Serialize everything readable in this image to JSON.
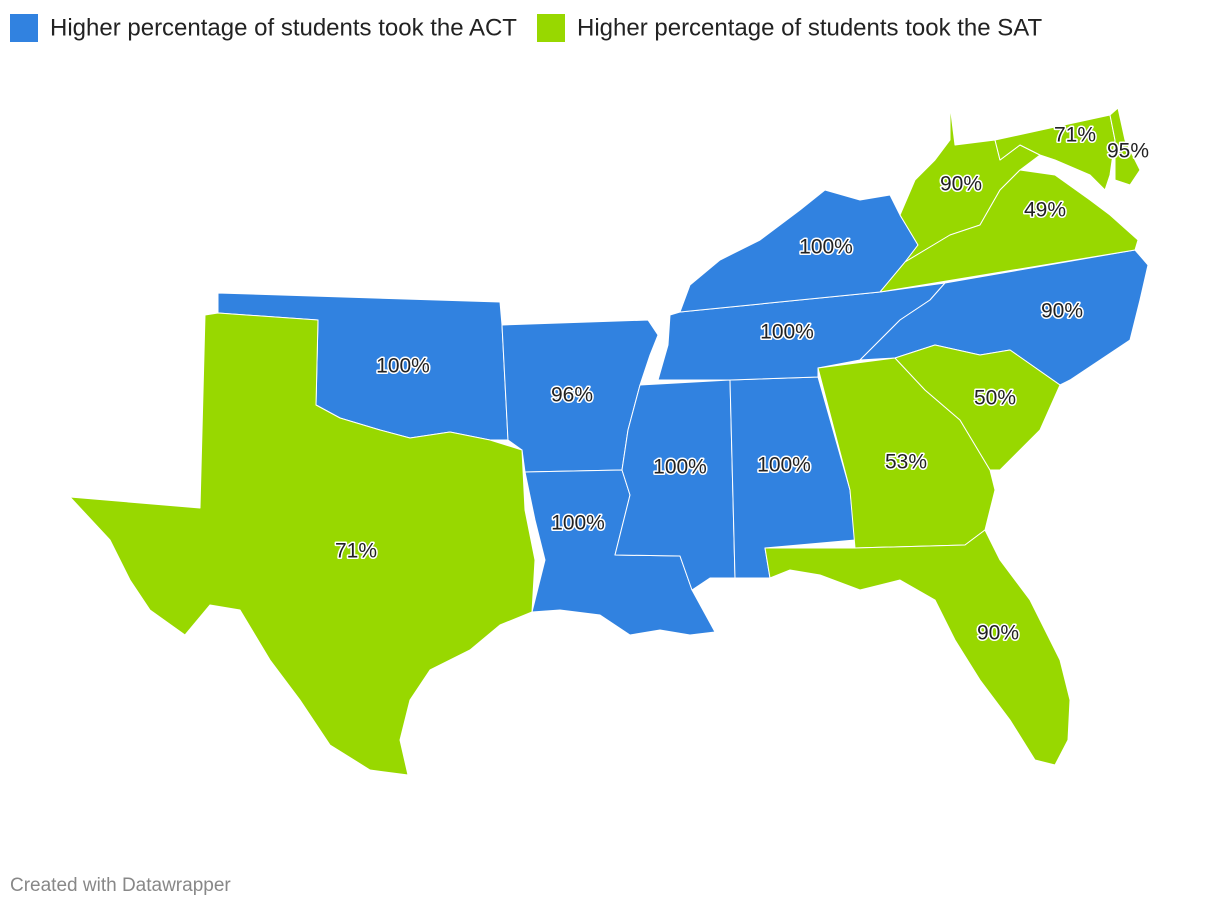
{
  "legend": [
    {
      "label": "Higher percentage of students took the ACT",
      "color": "#3182e0"
    },
    {
      "label": "Higher percentage of students took the SAT",
      "color": "#98d800"
    }
  ],
  "regions": [
    {
      "label": "100%",
      "legend": 0
    },
    {
      "label": "96%",
      "legend": 0
    },
    {
      "label": "100%",
      "legend": 0
    },
    {
      "label": "100%",
      "legend": 0
    },
    {
      "label": "100%",
      "legend": 0
    },
    {
      "label": "100%",
      "legend": 0
    },
    {
      "label": "100%",
      "legend": 0
    },
    {
      "label": "90%",
      "legend": 0
    },
    {
      "label": "71%",
      "legend": 1
    },
    {
      "label": "53%",
      "legend": 1
    },
    {
      "label": "50%",
      "legend": 1
    },
    {
      "label": "90%",
      "legend": 1
    },
    {
      "label": "90%",
      "legend": 1
    },
    {
      "label": "49%",
      "legend": 1
    },
    {
      "label": "71%",
      "legend": 1
    },
    {
      "label": "95%",
      "legend": 1
    }
  ],
  "footer": "Created with Datawrapper"
}
